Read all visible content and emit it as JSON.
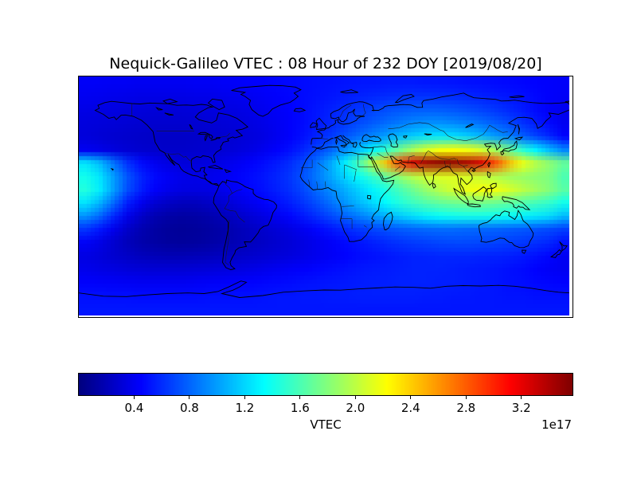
{
  "chart_data": {
    "type": "heatmap",
    "title": "Nequick-Galileo VTEC : 08 Hour of 232 DOY [2019/08/20]",
    "projection": "equirectangular",
    "lon_range": [
      -180,
      180
    ],
    "lat_range": [
      -90,
      90
    ],
    "grid_note": "rows: lat 85N to 85S step 10; cols: lon -175 to 175 step 10; values x1e17",
    "colormap": "jet",
    "vmin": 0,
    "vmax": 3.57,
    "colorbar": {
      "label": "VTEC",
      "offset_label": "1e17",
      "ticks": [
        0.4,
        0.8,
        1.2,
        1.6,
        2.0,
        2.4,
        2.8,
        3.2
      ],
      "vmin": 0,
      "vmax": 3.57
    },
    "grid": [
      [
        0.42,
        0.42,
        0.41,
        0.41,
        0.4,
        0.4,
        0.4,
        0.4,
        0.41,
        0.41,
        0.42,
        0.43,
        0.44,
        0.45,
        0.46,
        0.47,
        0.48,
        0.49,
        0.5,
        0.51,
        0.52,
        0.52,
        0.53,
        0.53,
        0.53,
        0.52,
        0.52,
        0.51,
        0.5,
        0.49,
        0.48,
        0.47,
        0.46,
        0.45,
        0.44,
        0.43
      ],
      [
        0.4,
        0.39,
        0.38,
        0.37,
        0.36,
        0.36,
        0.36,
        0.36,
        0.37,
        0.37,
        0.38,
        0.39,
        0.4,
        0.42,
        0.44,
        0.46,
        0.48,
        0.5,
        0.52,
        0.54,
        0.56,
        0.58,
        0.6,
        0.61,
        0.62,
        0.62,
        0.61,
        0.6,
        0.58,
        0.56,
        0.54,
        0.52,
        0.5,
        0.47,
        0.44,
        0.42
      ],
      [
        0.36,
        0.35,
        0.34,
        0.33,
        0.32,
        0.31,
        0.31,
        0.31,
        0.32,
        0.33,
        0.34,
        0.35,
        0.37,
        0.39,
        0.42,
        0.45,
        0.48,
        0.52,
        0.56,
        0.6,
        0.64,
        0.68,
        0.72,
        0.75,
        0.77,
        0.78,
        0.77,
        0.75,
        0.72,
        0.68,
        0.64,
        0.59,
        0.54,
        0.48,
        0.43,
        0.39
      ],
      [
        0.33,
        0.32,
        0.31,
        0.3,
        0.29,
        0.28,
        0.28,
        0.28,
        0.29,
        0.3,
        0.31,
        0.32,
        0.34,
        0.37,
        0.4,
        0.44,
        0.48,
        0.53,
        0.58,
        0.64,
        0.7,
        0.76,
        0.82,
        0.87,
        0.92,
        0.95,
        0.95,
        0.92,
        0.88,
        0.83,
        0.77,
        0.7,
        0.62,
        0.54,
        0.47,
        0.4
      ],
      [
        0.32,
        0.3,
        0.28,
        0.27,
        0.26,
        0.25,
        0.25,
        0.25,
        0.26,
        0.27,
        0.28,
        0.3,
        0.32,
        0.35,
        0.39,
        0.44,
        0.5,
        0.57,
        0.65,
        0.74,
        0.83,
        0.92,
        1.01,
        1.1,
        1.18,
        1.24,
        1.26,
        1.24,
        1.18,
        1.1,
        1.0,
        0.9,
        0.79,
        0.68,
        0.58,
        0.45
      ],
      [
        0.4,
        0.37,
        0.33,
        0.3,
        0.28,
        0.27,
        0.26,
        0.26,
        0.27,
        0.28,
        0.3,
        0.32,
        0.35,
        0.39,
        0.44,
        0.5,
        0.58,
        0.68,
        0.8,
        0.95,
        1.12,
        1.3,
        1.5,
        1.72,
        1.93,
        2.1,
        2.2,
        2.22,
        2.18,
        2.08,
        1.92,
        1.72,
        1.5,
        1.3,
        1.1,
        0.92
      ],
      [
        1.25,
        1.1,
        0.85,
        0.62,
        0.48,
        0.4,
        0.35,
        0.32,
        0.32,
        0.34,
        0.37,
        0.4,
        0.44,
        0.48,
        0.53,
        0.6,
        0.7,
        0.85,
        1.05,
        1.3,
        1.6,
        2.0,
        2.45,
        2.9,
        3.25,
        3.45,
        3.52,
        3.5,
        3.42,
        3.25,
        2.9,
        2.5,
        2.2,
        2.0,
        1.85,
        1.7
      ],
      [
        1.4,
        1.25,
        1.0,
        0.75,
        0.58,
        0.48,
        0.42,
        0.38,
        0.37,
        0.38,
        0.4,
        0.44,
        0.48,
        0.52,
        0.57,
        0.64,
        0.74,
        0.88,
        1.04,
        1.2,
        1.36,
        1.52,
        1.68,
        1.84,
        1.98,
        2.08,
        2.12,
        2.12,
        2.08,
        2.02,
        1.96,
        1.9,
        1.86,
        1.82,
        1.78,
        1.6
      ],
      [
        1.45,
        1.28,
        1.0,
        0.72,
        0.55,
        0.44,
        0.38,
        0.35,
        0.34,
        0.35,
        0.38,
        0.42,
        0.46,
        0.5,
        0.55,
        0.61,
        0.7,
        0.82,
        0.94,
        1.06,
        1.18,
        1.3,
        1.44,
        1.58,
        1.72,
        1.86,
        1.98,
        2.08,
        2.16,
        2.2,
        2.18,
        2.1,
        2.0,
        1.9,
        1.8,
        1.65
      ],
      [
        1.25,
        1.08,
        0.82,
        0.55,
        0.4,
        0.3,
        0.25,
        0.22,
        0.22,
        0.25,
        0.29,
        0.34,
        0.39,
        0.44,
        0.49,
        0.55,
        0.63,
        0.73,
        0.85,
        0.97,
        1.09,
        1.21,
        1.33,
        1.45,
        1.55,
        1.63,
        1.69,
        1.73,
        1.75,
        1.75,
        1.72,
        1.68,
        1.63,
        1.58,
        1.52,
        1.4
      ],
      [
        0.95,
        0.8,
        0.58,
        0.38,
        0.26,
        0.18,
        0.14,
        0.12,
        0.13,
        0.16,
        0.2,
        0.25,
        0.3,
        0.35,
        0.4,
        0.46,
        0.53,
        0.61,
        0.7,
        0.79,
        0.88,
        0.97,
        1.06,
        1.15,
        1.23,
        1.3,
        1.35,
        1.38,
        1.4,
        1.4,
        1.38,
        1.35,
        1.31,
        1.27,
        1.22,
        1.1
      ],
      [
        0.62,
        0.52,
        0.38,
        0.26,
        0.18,
        0.13,
        0.1,
        0.09,
        0.1,
        0.12,
        0.15,
        0.19,
        0.23,
        0.27,
        0.31,
        0.35,
        0.4,
        0.46,
        0.52,
        0.58,
        0.63,
        0.68,
        0.72,
        0.76,
        0.79,
        0.81,
        0.82,
        0.82,
        0.81,
        0.8,
        0.79,
        0.77,
        0.75,
        0.73,
        0.7,
        0.66
      ],
      [
        0.42,
        0.36,
        0.28,
        0.21,
        0.16,
        0.13,
        0.11,
        0.1,
        0.11,
        0.13,
        0.16,
        0.19,
        0.22,
        0.25,
        0.28,
        0.31,
        0.35,
        0.39,
        0.43,
        0.47,
        0.51,
        0.55,
        0.59,
        0.62,
        0.65,
        0.67,
        0.69,
        0.7,
        0.7,
        0.69,
        0.68,
        0.66,
        0.64,
        0.61,
        0.58,
        0.5
      ],
      [
        0.35,
        0.32,
        0.28,
        0.25,
        0.22,
        0.2,
        0.19,
        0.19,
        0.2,
        0.21,
        0.23,
        0.25,
        0.27,
        0.29,
        0.31,
        0.33,
        0.36,
        0.39,
        0.42,
        0.45,
        0.48,
        0.5,
        0.52,
        0.54,
        0.56,
        0.57,
        0.58,
        0.58,
        0.58,
        0.57,
        0.56,
        0.55,
        0.53,
        0.5,
        0.46,
        0.4
      ],
      [
        0.38,
        0.36,
        0.34,
        0.32,
        0.31,
        0.3,
        0.3,
        0.3,
        0.31,
        0.32,
        0.33,
        0.34,
        0.36,
        0.38,
        0.4,
        0.42,
        0.44,
        0.46,
        0.48,
        0.5,
        0.52,
        0.53,
        0.54,
        0.55,
        0.56,
        0.56,
        0.56,
        0.55,
        0.54,
        0.53,
        0.52,
        0.5,
        0.48,
        0.45,
        0.42,
        0.4
      ],
      [
        0.44,
        0.43,
        0.42,
        0.41,
        0.4,
        0.4,
        0.4,
        0.4,
        0.41,
        0.42,
        0.43,
        0.44,
        0.45,
        0.46,
        0.47,
        0.48,
        0.5,
        0.51,
        0.52,
        0.53,
        0.54,
        0.55,
        0.55,
        0.56,
        0.56,
        0.56,
        0.55,
        0.55,
        0.54,
        0.53,
        0.52,
        0.5,
        0.49,
        0.47,
        0.46,
        0.45
      ],
      [
        0.5,
        0.5,
        0.49,
        0.49,
        0.48,
        0.48,
        0.48,
        0.48,
        0.48,
        0.49,
        0.49,
        0.5,
        0.5,
        0.51,
        0.52,
        0.52,
        0.53,
        0.53,
        0.54,
        0.54,
        0.55,
        0.55,
        0.55,
        0.55,
        0.55,
        0.54,
        0.54,
        0.53,
        0.53,
        0.52,
        0.52,
        0.51,
        0.51,
        0.5,
        0.5,
        0.5
      ],
      [
        0.52,
        0.52,
        0.52,
        0.52,
        0.52,
        0.52,
        0.52,
        0.52,
        0.52,
        0.52,
        0.52,
        0.52,
        0.52,
        0.52,
        0.52,
        0.52,
        0.52,
        0.52,
        0.52,
        0.52,
        0.52,
        0.52,
        0.52,
        0.52,
        0.52,
        0.52,
        0.52,
        0.52,
        0.52,
        0.52,
        0.52,
        0.52,
        0.52,
        0.52,
        0.52,
        0.52
      ]
    ]
  }
}
